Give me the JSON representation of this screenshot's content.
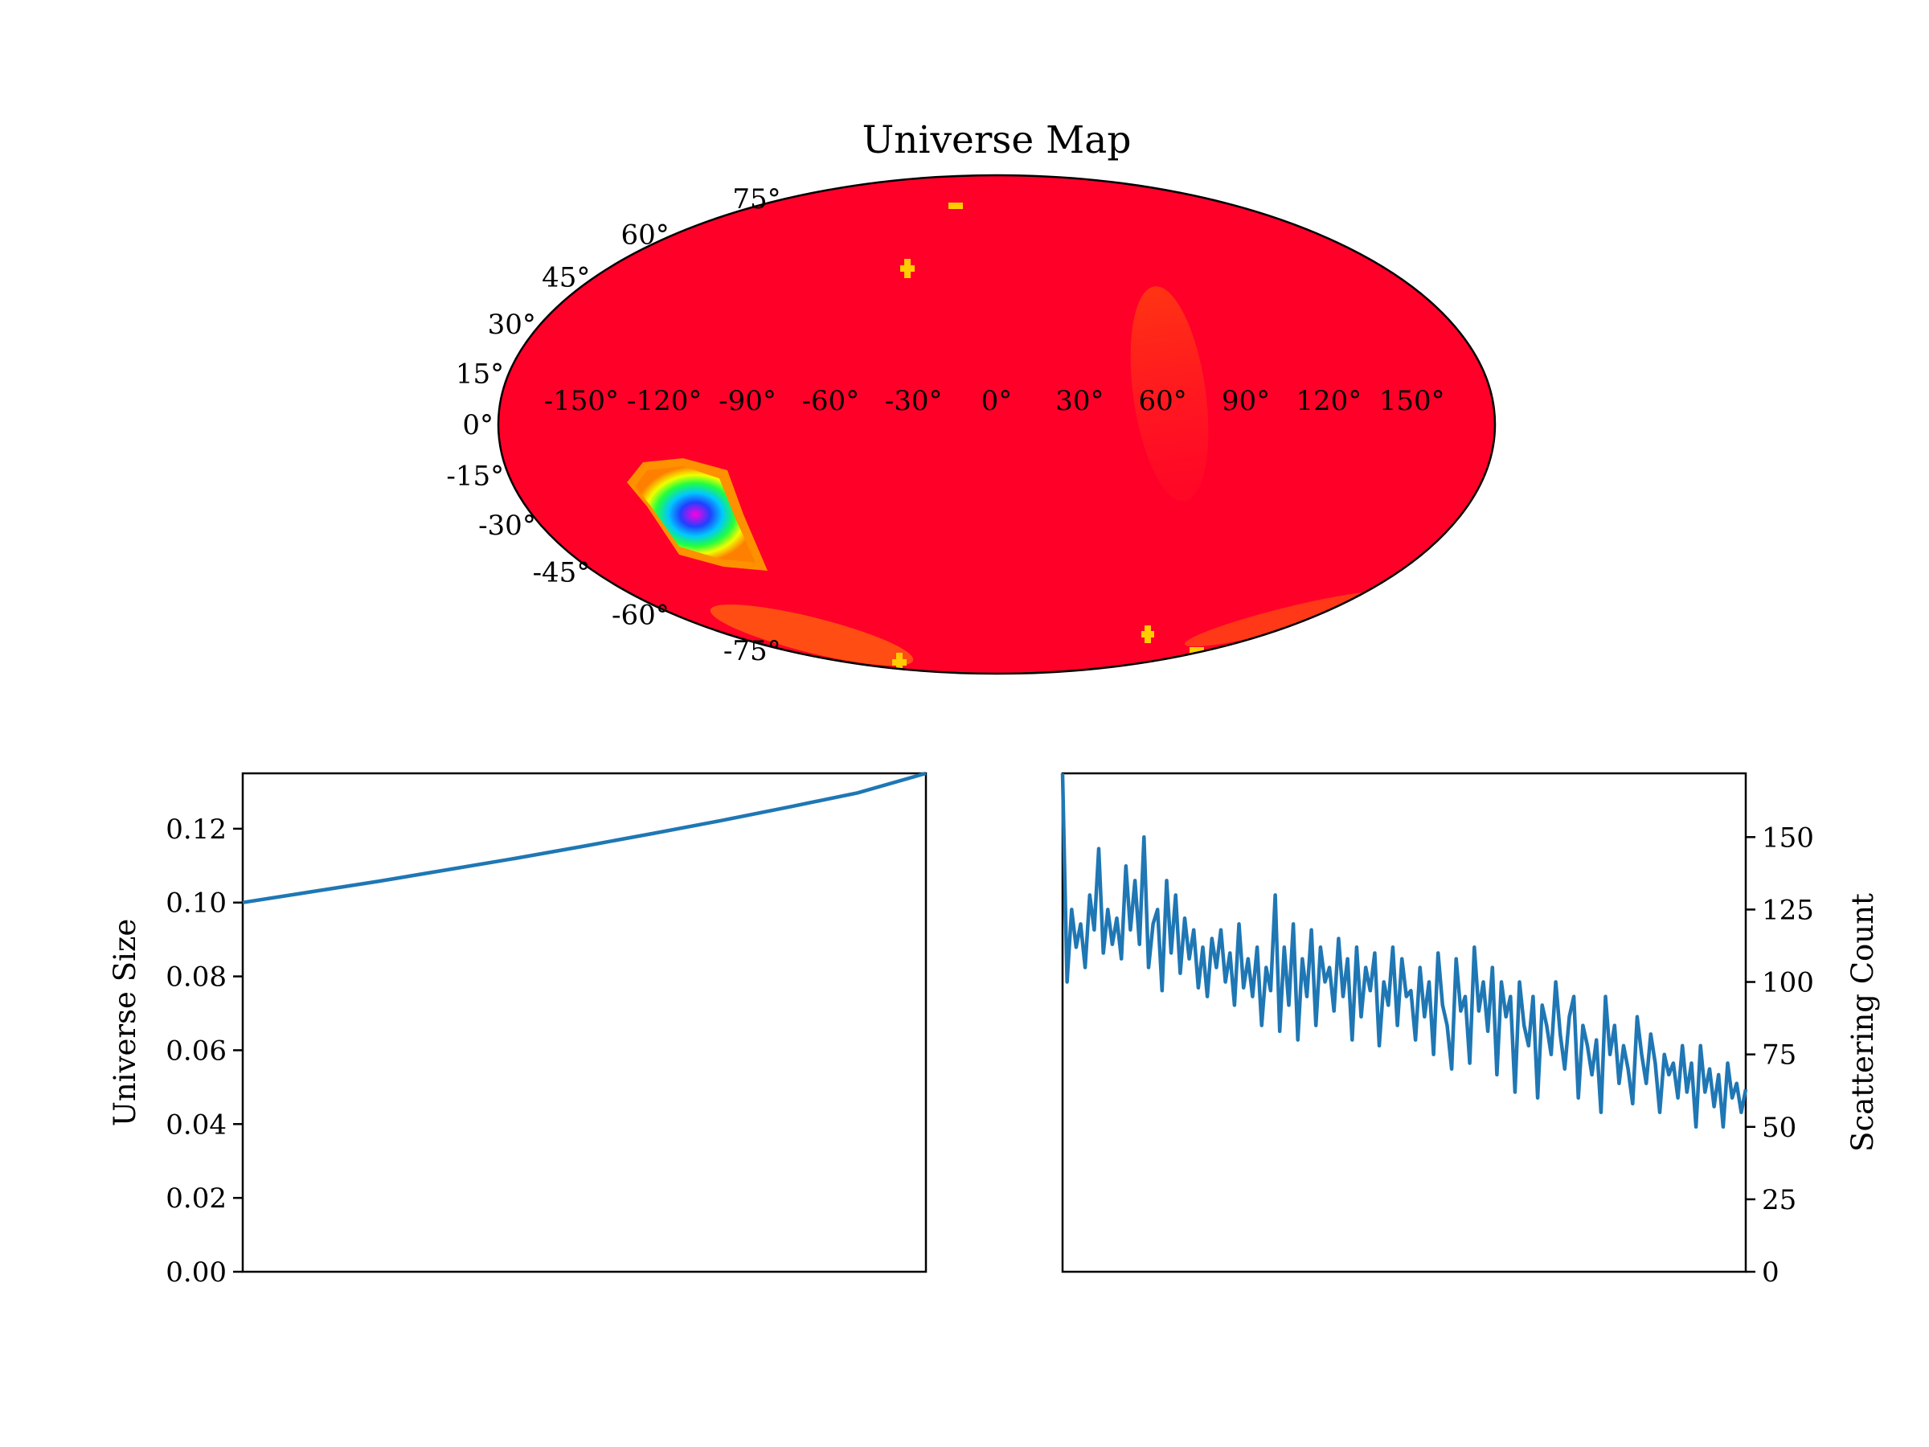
{
  "chart_data": [
    {
      "type": "heatmap",
      "title": "Universe Map",
      "projection": "mollweide",
      "lon_ticks": [
        "-150°",
        "-120°",
        "-90°",
        "-60°",
        "-30°",
        "0°",
        "30°",
        "60°",
        "90°",
        "120°",
        "150°"
      ],
      "lat_ticks": [
        "75°",
        "60°",
        "45°",
        "30°",
        "15°",
        "0°",
        "-15°",
        "-30°",
        "-45°",
        "-60°",
        "-75°"
      ],
      "lon_values": [
        -150,
        -120,
        -90,
        -60,
        -30,
        0,
        30,
        60,
        90,
        120,
        150
      ],
      "lat_values": [
        75,
        60,
        45,
        30,
        15,
        0,
        -15,
        -30,
        -45,
        -60,
        -75
      ],
      "colormap": "gist_rainbow (red high, magenta low)",
      "background_color": "#ff0028",
      "features": [
        {
          "lon": -100,
          "lat": -30,
          "note": "cold spot (magenta/blue core, green/yellow rim)"
        },
        {
          "lon": 60,
          "lat": 15,
          "note": "faint warm streak"
        }
      ]
    },
    {
      "type": "line",
      "title": "",
      "xlabel": "",
      "ylabel": "Universe Size",
      "ylim": [
        0,
        0.135
      ],
      "yticks": [
        "0.00",
        "0.02",
        "0.04",
        "0.06",
        "0.08",
        "0.10",
        "0.12"
      ],
      "ytick_values": [
        0,
        0.02,
        0.04,
        0.06,
        0.08,
        0.1,
        0.12
      ],
      "x": [
        0,
        0.1,
        0.2,
        0.3,
        0.4,
        0.5,
        0.6,
        0.7,
        0.8,
        0.9,
        1.0
      ],
      "values": [
        0.1,
        0.1029,
        0.1058,
        0.1089,
        0.112,
        0.1153,
        0.1187,
        0.1222,
        0.1259,
        0.1297,
        0.135
      ],
      "color": "#1f77b4"
    },
    {
      "type": "line",
      "title": "",
      "xlabel": "",
      "ylabel": "Scattering Count",
      "ylabel_side": "right",
      "ylim": [
        0,
        172
      ],
      "yticks": [
        "0",
        "25",
        "50",
        "75",
        "100",
        "125",
        "150"
      ],
      "ytick_values": [
        0,
        25,
        50,
        75,
        100,
        125,
        150
      ],
      "values": [
        172,
        100,
        125,
        112,
        120,
        105,
        130,
        118,
        146,
        110,
        125,
        113,
        122,
        108,
        140,
        118,
        135,
        113,
        150,
        105,
        120,
        125,
        97,
        135,
        110,
        130,
        103,
        122,
        108,
        118,
        98,
        112,
        95,
        115,
        105,
        118,
        100,
        110,
        92,
        120,
        98,
        108,
        95,
        112,
        85,
        105,
        97,
        130,
        83,
        112,
        92,
        120,
        80,
        108,
        95,
        118,
        85,
        112,
        100,
        105,
        90,
        115,
        95,
        108,
        80,
        112,
        88,
        105,
        97,
        110,
        78,
        100,
        92,
        112,
        85,
        108,
        95,
        97,
        80,
        105,
        88,
        100,
        75,
        110,
        92,
        85,
        70,
        108,
        90,
        95,
        72,
        112,
        90,
        100,
        83,
        105,
        68,
        100,
        88,
        95,
        62,
        100,
        85,
        78,
        95,
        60,
        92,
        85,
        75,
        100,
        82,
        70,
        88,
        95,
        60,
        85,
        78,
        68,
        80,
        55,
        95,
        75,
        85,
        65,
        78,
        70,
        58,
        88,
        75,
        65,
        82,
        72,
        55,
        75,
        68,
        72,
        60,
        78,
        62,
        72,
        50,
        78,
        62,
        70,
        57,
        68,
        50,
        72,
        60,
        65,
        55,
        63
      ],
      "color": "#1f77b4"
    }
  ]
}
